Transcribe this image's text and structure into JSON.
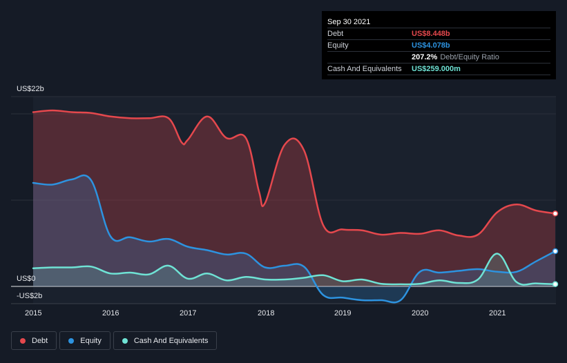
{
  "tooltip": {
    "date": "Sep 30 2021",
    "debt_label": "Debt",
    "debt_value": "US$8.448b",
    "equity_label": "Equity",
    "equity_value": "US$4.078b",
    "ratio_value": "207.2%",
    "ratio_label": "Debt/Equity Ratio",
    "cash_label": "Cash And Equivalents",
    "cash_value": "US$259.000m"
  },
  "legend": {
    "debt": "Debt",
    "equity": "Equity",
    "cash": "Cash And Equivalents"
  },
  "colors": {
    "debt": "#e5484d",
    "equity": "#2d93e0",
    "cash": "#6fe3d5"
  },
  "chart_data": {
    "type": "area",
    "title": "",
    "xlabel": "",
    "ylabel": "",
    "x_range": [
      2015.0,
      2021.75
    ],
    "ylim": [
      -2,
      22
    ],
    "y_tick_labels": [
      "US$22b",
      "US$0",
      "-US$2b"
    ],
    "y_tick_values": [
      22,
      0,
      -2
    ],
    "x_tick_labels": [
      "2015",
      "2016",
      "2017",
      "2018",
      "2019",
      "2020",
      "2021"
    ],
    "x_tick_values": [
      2015,
      2016,
      2017,
      2018,
      2019,
      2020,
      2021
    ],
    "series": [
      {
        "name": "Debt",
        "key": "debt",
        "x": [
          2015.0,
          2015.25,
          2015.5,
          2015.75,
          2016.0,
          2016.25,
          2016.5,
          2016.75,
          2016.92,
          2017.0,
          2017.25,
          2017.5,
          2017.75,
          2017.92,
          2018.0,
          2018.25,
          2018.5,
          2018.75,
          2019.0,
          2019.25,
          2019.5,
          2019.75,
          2020.0,
          2020.25,
          2020.5,
          2020.75,
          2021.0,
          2021.25,
          2021.5,
          2021.75
        ],
        "values": [
          20.2,
          20.4,
          20.2,
          20.1,
          19.7,
          19.5,
          19.5,
          19.5,
          16.7,
          17.0,
          19.7,
          17.2,
          17.2,
          11.0,
          9.7,
          16.4,
          15.8,
          7.1,
          6.6,
          6.5,
          6.0,
          6.2,
          6.1,
          6.5,
          5.9,
          6.0,
          8.6,
          9.5,
          8.8,
          8.448
        ]
      },
      {
        "name": "Equity",
        "key": "equity",
        "x": [
          2015.0,
          2015.25,
          2015.5,
          2015.75,
          2016.0,
          2016.25,
          2016.5,
          2016.75,
          2017.0,
          2017.25,
          2017.5,
          2017.75,
          2018.0,
          2018.25,
          2018.5,
          2018.75,
          2019.0,
          2019.25,
          2019.5,
          2019.75,
          2020.0,
          2020.25,
          2020.5,
          2020.75,
          2021.0,
          2021.25,
          2021.5,
          2021.75
        ],
        "values": [
          12.0,
          11.8,
          12.4,
          12.3,
          5.8,
          5.7,
          5.2,
          5.5,
          4.6,
          4.2,
          3.7,
          3.8,
          2.2,
          2.4,
          2.3,
          -1.0,
          -1.3,
          -1.6,
          -1.6,
          -1.6,
          1.7,
          1.6,
          1.8,
          2.0,
          1.7,
          1.7,
          2.9,
          4.078
        ]
      },
      {
        "name": "Cash And Equivalents",
        "key": "cash",
        "x": [
          2015.0,
          2015.25,
          2015.5,
          2015.75,
          2016.0,
          2016.25,
          2016.5,
          2016.75,
          2017.0,
          2017.25,
          2017.5,
          2017.75,
          2018.0,
          2018.25,
          2018.5,
          2018.75,
          2019.0,
          2019.25,
          2019.5,
          2019.75,
          2020.0,
          2020.25,
          2020.5,
          2020.75,
          2021.0,
          2021.25,
          2021.5,
          2021.75
        ],
        "values": [
          2.1,
          2.2,
          2.2,
          2.3,
          1.5,
          1.6,
          1.4,
          2.4,
          0.9,
          1.5,
          0.7,
          1.1,
          0.8,
          0.8,
          1.0,
          1.3,
          0.6,
          0.8,
          0.3,
          0.25,
          0.3,
          0.7,
          0.4,
          0.8,
          3.8,
          0.5,
          0.35,
          0.259
        ]
      }
    ]
  }
}
